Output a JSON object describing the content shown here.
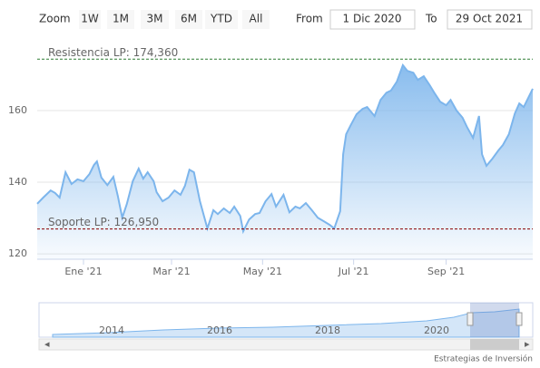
{
  "ui": {
    "zoom_label": "Zoom",
    "buttons": [
      "1W",
      "1M",
      "3M",
      "6M",
      "YTD",
      "All"
    ],
    "from_label": "From",
    "from_value": "1 Dic 2020",
    "to_label": "To",
    "to_value": "29 Oct 2021",
    "credit": "Estrategias de Inversión"
  },
  "navigator": {
    "labels": [
      "2014",
      "2016",
      "2018",
      "2020"
    ]
  },
  "chart_data": {
    "type": "area",
    "color": "#7cb5ec",
    "grid": true,
    "xlim": [
      "2020-12-01",
      "2021-10-29"
    ],
    "xticks": [
      {
        "value": "2021-01-01",
        "label": "Ene '21"
      },
      {
        "value": "2021-03-01",
        "label": "Mar '21"
      },
      {
        "value": "2021-05-01",
        "label": "May '21"
      },
      {
        "value": "2021-07-01",
        "label": "Jul '21"
      },
      {
        "value": "2021-09-01",
        "label": "Sep '21"
      }
    ],
    "ylim": [
      118.5,
      179.5
    ],
    "yticks": [
      120,
      140,
      160
    ],
    "plot_lines": [
      {
        "label": "Resistencia LP: 174,360",
        "value": 174.36,
        "color": "#2e7d32"
      },
      {
        "label": "Soporte LP: 126,950",
        "value": 126.95,
        "color": "#8b0000"
      }
    ],
    "x": [
      "2020-12-01",
      "2020-12-05",
      "2020-12-10",
      "2020-12-13",
      "2020-12-16",
      "2020-12-20",
      "2020-12-24",
      "2020-12-28",
      "2021-01-01",
      "2021-01-05",
      "2021-01-08",
      "2021-01-10",
      "2021-01-13",
      "2021-01-17",
      "2021-01-21",
      "2021-01-24",
      "2021-01-27",
      "2021-01-30",
      "2021-02-03",
      "2021-02-07",
      "2021-02-10",
      "2021-02-13",
      "2021-02-17",
      "2021-02-19",
      "2021-02-23",
      "2021-02-27",
      "2021-03-03",
      "2021-03-07",
      "2021-03-10",
      "2021-03-13",
      "2021-03-16",
      "2021-03-20",
      "2021-03-25",
      "2021-03-29",
      "2021-04-01",
      "2021-04-05",
      "2021-04-09",
      "2021-04-12",
      "2021-04-16",
      "2021-04-18",
      "2021-04-22",
      "2021-04-26",
      "2021-04-29",
      "2021-05-03",
      "2021-05-07",
      "2021-05-10",
      "2021-05-15",
      "2021-05-19",
      "2021-05-23",
      "2021-05-26",
      "2021-05-30",
      "2021-06-03",
      "2021-06-07",
      "2021-06-11",
      "2021-06-15",
      "2021-06-18",
      "2021-06-22",
      "2021-06-24",
      "2021-06-26",
      "2021-06-29",
      "2021-07-03",
      "2021-07-07",
      "2021-07-10",
      "2021-07-15",
      "2021-07-19",
      "2021-07-23",
      "2021-07-26",
      "2021-07-30",
      "2021-08-03",
      "2021-08-06",
      "2021-08-10",
      "2021-08-13",
      "2021-08-17",
      "2021-08-21",
      "2021-08-24",
      "2021-08-28",
      "2021-09-01",
      "2021-09-04",
      "2021-09-08",
      "2021-09-12",
      "2021-09-15",
      "2021-09-19",
      "2021-09-23",
      "2021-09-25",
      "2021-09-28",
      "2021-10-02",
      "2021-10-06",
      "2021-10-09",
      "2021-10-13",
      "2021-10-17",
      "2021-10-20",
      "2021-10-23",
      "2021-10-29"
    ],
    "values": [
      134,
      135.7,
      137.7,
      137,
      135.7,
      142.8,
      139.5,
      140.8,
      140.3,
      142.3,
      144.8,
      145.8,
      141.3,
      139.2,
      141.5,
      136.2,
      130.1,
      133.9,
      140.3,
      143.8,
      141,
      142.8,
      140.3,
      137.2,
      134.7,
      135.7,
      137.7,
      136.5,
      139,
      143.5,
      142.8,
      134.7,
      127.1,
      132.2,
      131.1,
      132.7,
      131.4,
      133.2,
      130.6,
      126.3,
      129.6,
      131.1,
      131.4,
      134.7,
      136.7,
      133.2,
      136.5,
      131.6,
      133.2,
      132.7,
      134.2,
      132.2,
      130.1,
      129.1,
      128.1,
      127.1,
      131.9,
      147.8,
      153.4,
      155.9,
      159,
      160.5,
      161,
      158.5,
      163,
      165,
      165.6,
      168.1,
      172.7,
      171.1,
      170.6,
      168.6,
      169.6,
      167.1,
      165,
      162.5,
      161.5,
      163,
      160,
      158,
      155.4,
      152.4,
      158.5,
      147.8,
      144.6,
      146.6,
      148.9,
      150.4,
      153.4,
      159.2,
      162,
      161,
      166.1
    ]
  }
}
